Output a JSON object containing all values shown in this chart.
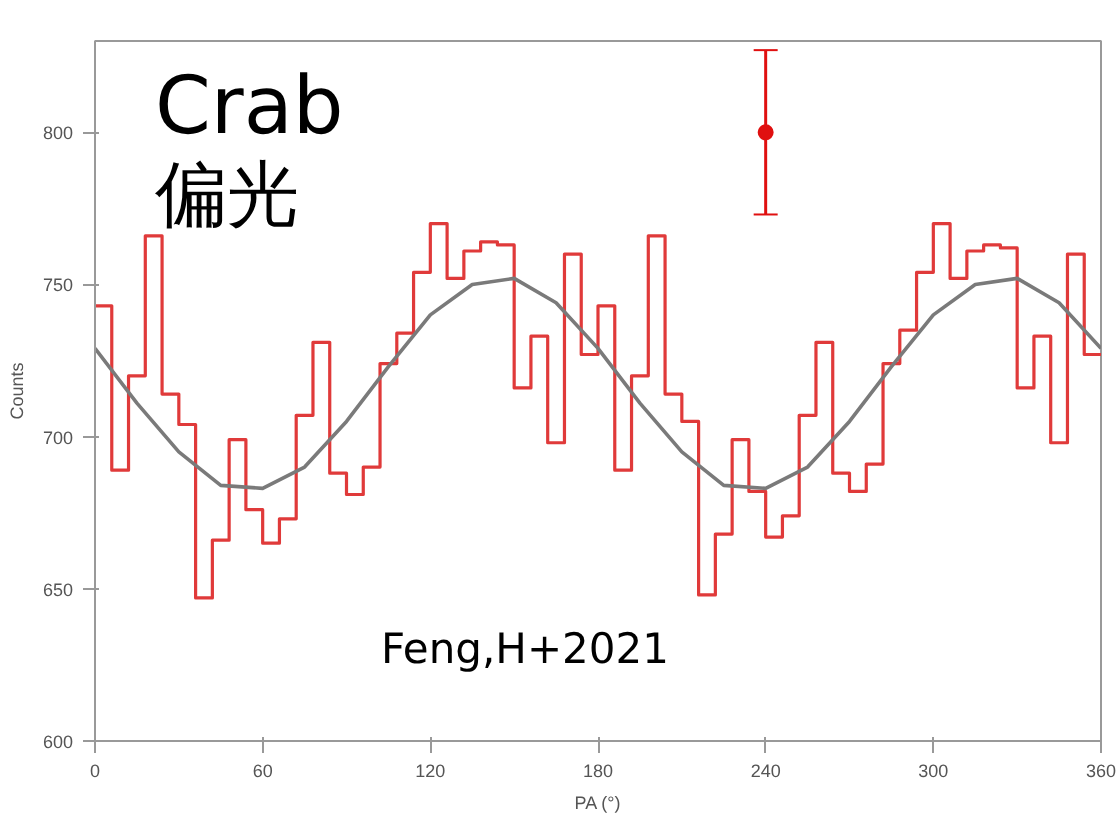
{
  "chart_data": {
    "type": "histogram",
    "xlabel": "PA (°)",
    "ylabel": "Counts",
    "bins": [
      0,
      6,
      12,
      18,
      24,
      30,
      36,
      42,
      48,
      54,
      60,
      66,
      72,
      78,
      84,
      90,
      96,
      102,
      108,
      114,
      120,
      126,
      132,
      138,
      144,
      150,
      156,
      162,
      168,
      174,
      180,
      186,
      192,
      198,
      204,
      210,
      216,
      222,
      228,
      234,
      240,
      246,
      252,
      258,
      264,
      270,
      276,
      282,
      288,
      294,
      300,
      306,
      312,
      318,
      324,
      330,
      336,
      342,
      348,
      354,
      360
    ],
    "series": [
      {
        "color": "#e03a3a",
        "values": [
          743,
          689,
          720,
          766,
          714,
          704,
          647,
          666,
          699,
          676,
          665,
          673,
          707,
          731,
          688,
          681,
          690,
          724,
          734,
          754,
          770,
          752,
          761,
          764,
          763,
          716,
          733,
          698,
          760,
          727,
          743,
          689,
          720,
          766,
          714,
          705,
          648,
          668,
          699,
          682,
          667,
          674,
          707,
          731,
          688,
          682,
          691,
          724,
          735,
          754,
          770,
          752,
          761,
          763,
          762,
          716,
          733,
          698,
          760,
          727
        ]
      },
      {
        "type": "line",
        "color": "#7a7a7a",
        "x": [
          0,
          15,
          30,
          45,
          60,
          75,
          90,
          105,
          120,
          135,
          150,
          165,
          180,
          195,
          210,
          225,
          240,
          255,
          270,
          285,
          300,
          315,
          330,
          345,
          360
        ],
        "values": [
          729,
          711,
          695,
          684,
          683,
          690,
          705,
          723,
          740,
          750,
          752,
          744,
          729,
          711,
          695,
          684,
          683,
          690,
          705,
          723,
          740,
          750,
          752,
          744,
          729
        ]
      },
      {
        "type": "scatter",
        "color": "#e01010",
        "x": [
          240
        ],
        "values": [
          800
        ],
        "errors": [
          27
        ]
      }
    ],
    "xlim": [
      0,
      360
    ],
    "ylim": [
      600,
      830
    ],
    "xticks": [
      0,
      60,
      120,
      180,
      240,
      300,
      360
    ],
    "yticks": [
      600,
      650,
      700,
      750,
      800
    ],
    "grid": false,
    "annotations": [
      "Crab",
      "偏光",
      "Feng,H+2021"
    ]
  }
}
